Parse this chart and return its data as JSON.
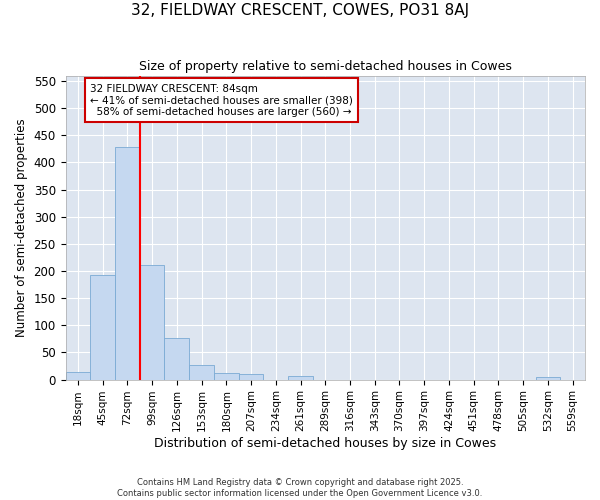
{
  "title": "32, FIELDWAY CRESCENT, COWES, PO31 8AJ",
  "subtitle": "Size of property relative to semi-detached houses in Cowes",
  "xlabel": "Distribution of semi-detached houses by size in Cowes",
  "ylabel": "Number of semi-detached properties",
  "bin_labels": [
    "18sqm",
    "45sqm",
    "72sqm",
    "99sqm",
    "126sqm",
    "153sqm",
    "180sqm",
    "207sqm",
    "234sqm",
    "261sqm",
    "289sqm",
    "316sqm",
    "343sqm",
    "370sqm",
    "397sqm",
    "424sqm",
    "451sqm",
    "478sqm",
    "505sqm",
    "532sqm",
    "559sqm"
  ],
  "bar_values": [
    14,
    193,
    428,
    211,
    76,
    27,
    13,
    10,
    0,
    7,
    0,
    0,
    0,
    0,
    0,
    0,
    0,
    0,
    0,
    5,
    0
  ],
  "bar_color": "#c5d8f0",
  "bar_edge_color": "#7aaad4",
  "background_color": "#dde5f0",
  "grid_color": "#ffffff",
  "ylim": [
    0,
    560
  ],
  "yticks": [
    0,
    50,
    100,
    150,
    200,
    250,
    300,
    350,
    400,
    450,
    500,
    550
  ],
  "property_label": "32 FIELDWAY CRESCENT: 84sqm",
  "pct_smaller": 41,
  "pct_smaller_n": 398,
  "pct_larger": 58,
  "pct_larger_n": 560,
  "red_line_bin_idx": 2,
  "annotation_box_color": "#ffffff",
  "annotation_box_edge": "#cc0000",
  "footnote1": "Contains HM Land Registry data © Crown copyright and database right 2025.",
  "footnote2": "Contains public sector information licensed under the Open Government Licence v3.0."
}
